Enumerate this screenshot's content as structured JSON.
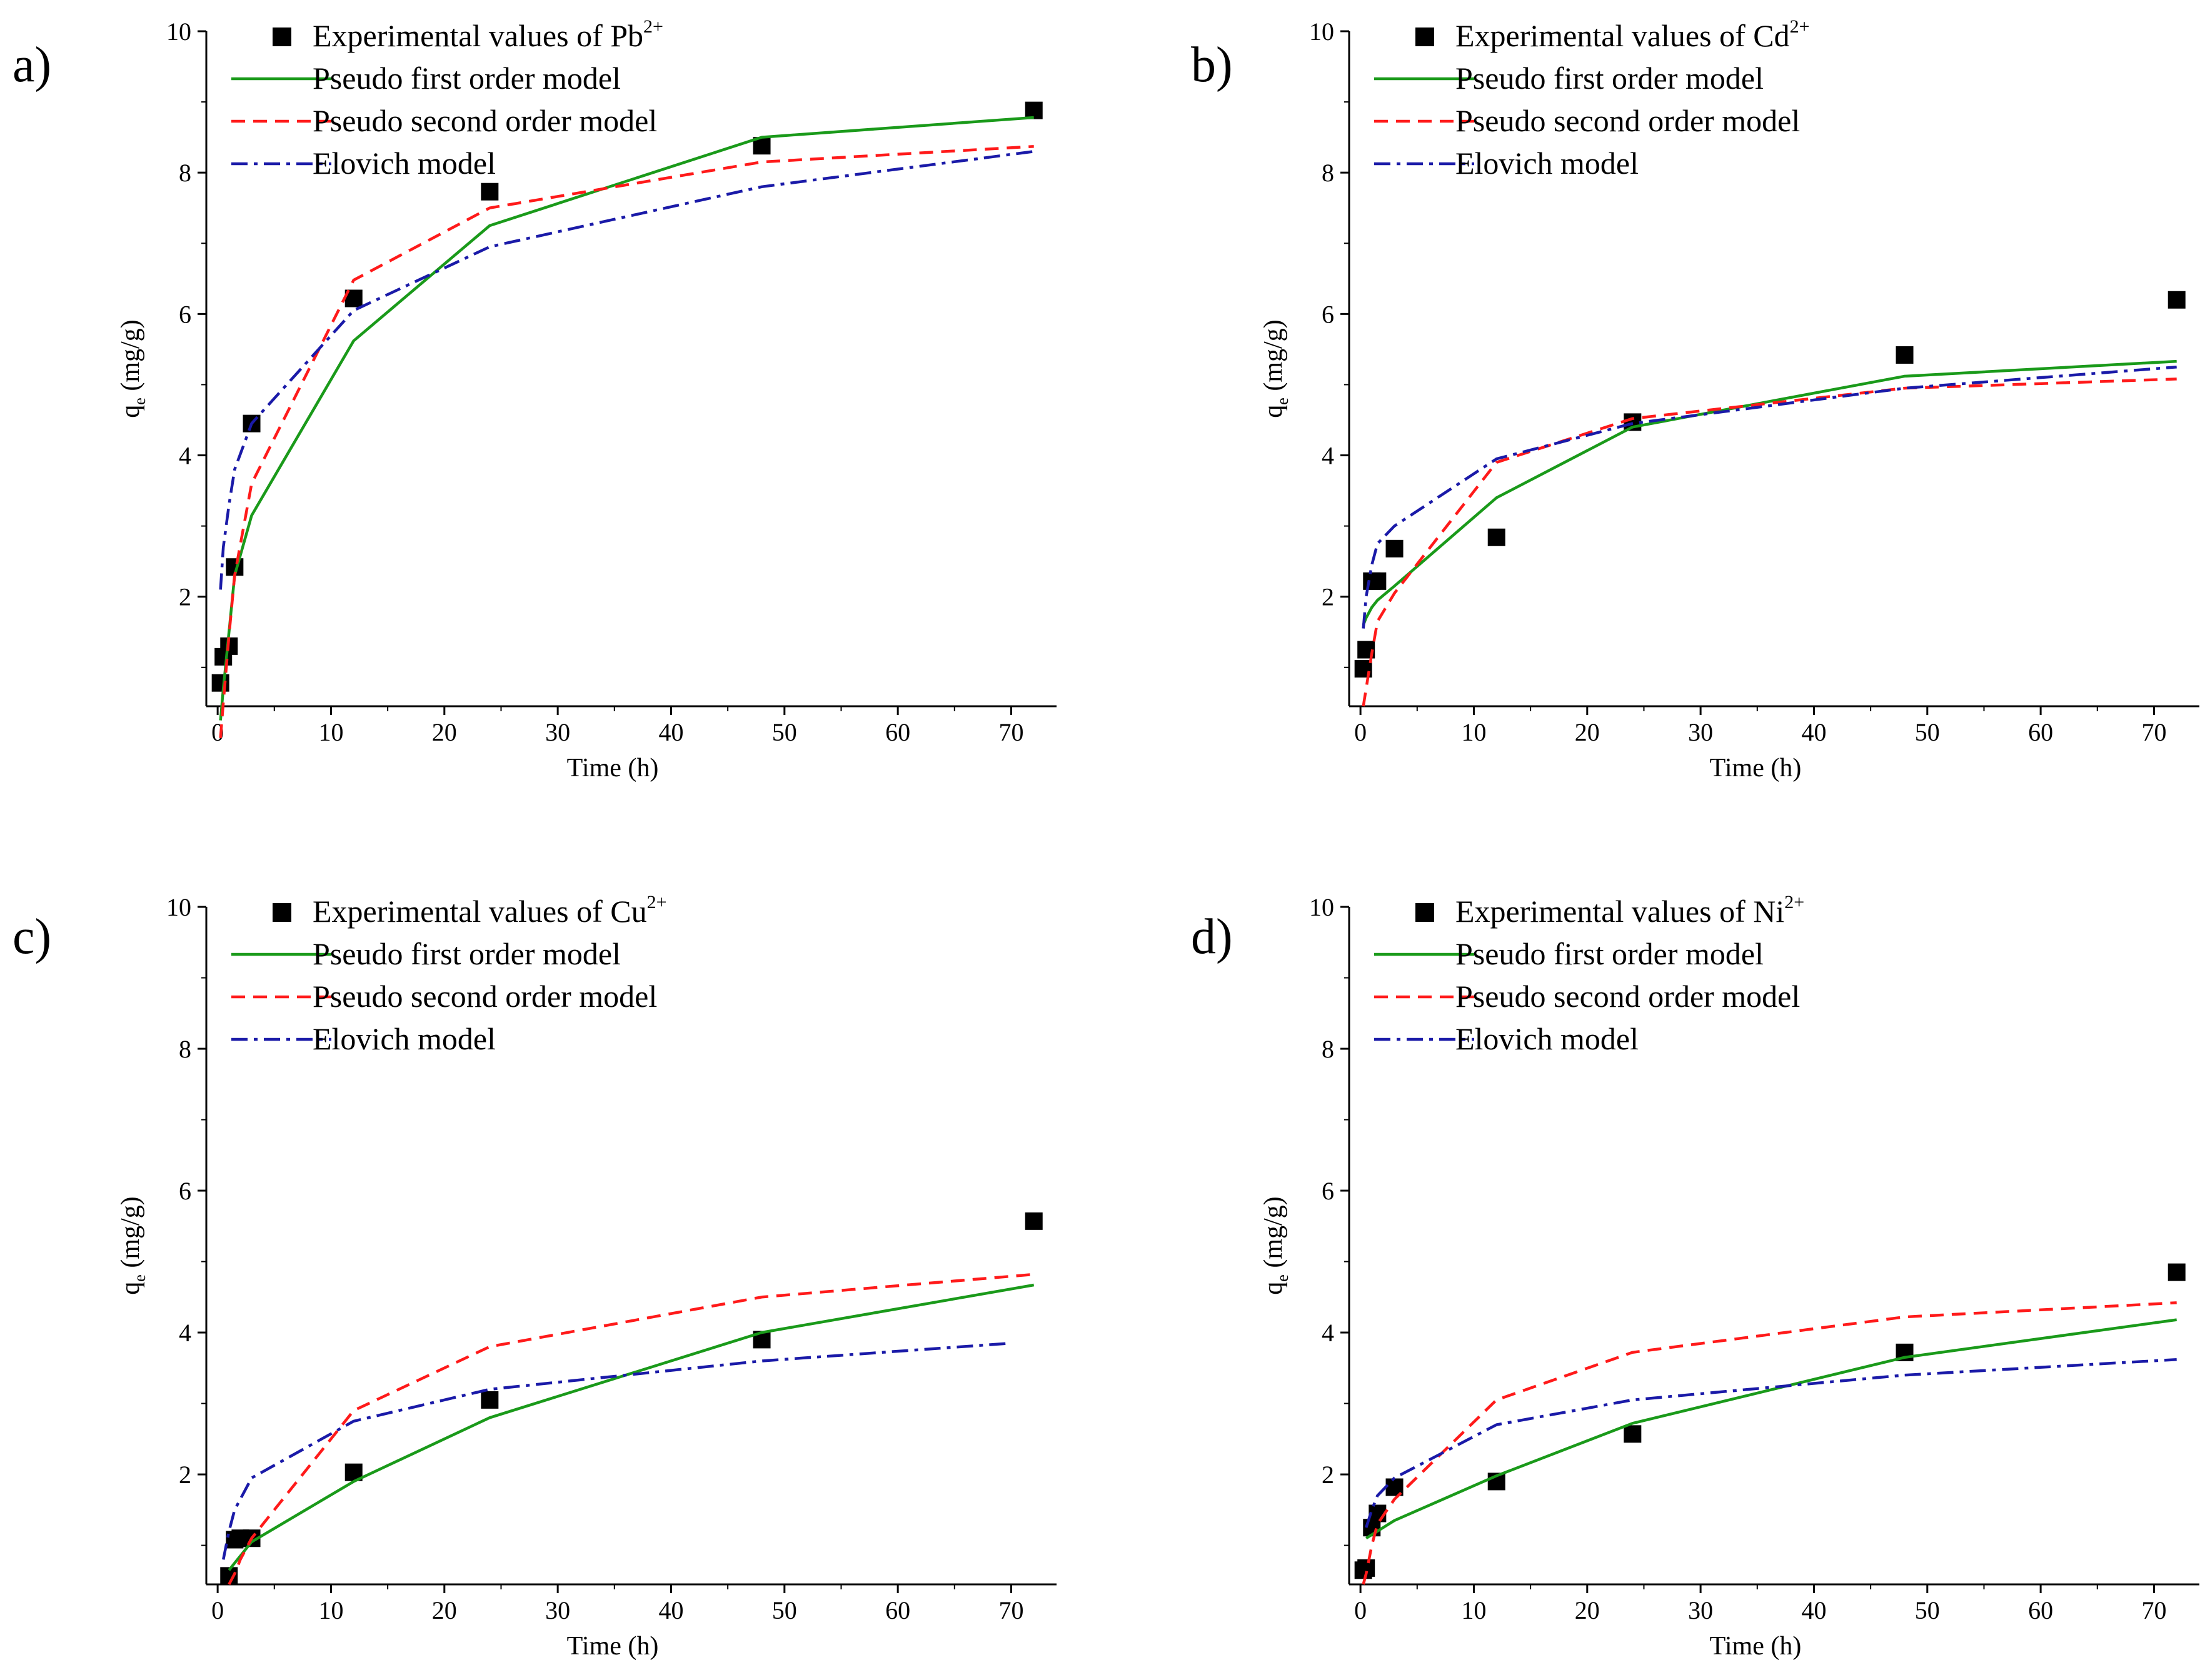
{
  "figure": {
    "colors": {
      "experimental": "#000000",
      "first_order": "#1a9a1a",
      "second_order": "#ff1a1a",
      "elovich": "#1a1aa8"
    },
    "legend_labels": {
      "first_order": "Pseudo first order model",
      "second_order": "Pseudo second order model",
      "elovich": "Elovich model"
    }
  },
  "chart_data": [
    {
      "type": "line",
      "panel_label": "a)",
      "legend_title": "Experimental values of Pb",
      "legend_sup": "2+",
      "xlabel": "Time (h)",
      "ylabel_main": "q",
      "ylabel_sub": "e",
      "ylabel_unit": " (mg/g)",
      "xlim": [
        -1,
        74
      ],
      "ylim": [
        0.45,
        10
      ],
      "xticks": [
        0,
        10,
        20,
        30,
        40,
        50,
        60,
        70
      ],
      "yticks": [
        2,
        4,
        6,
        8,
        10
      ],
      "series": [
        {
          "name": "Experimental values",
          "kind": "scatter",
          "x": [
            0.25,
            0.5,
            1,
            1.5,
            3,
            12,
            24,
            48,
            72
          ],
          "y": [
            0.78,
            1.15,
            1.3,
            2.42,
            4.45,
            6.22,
            7.73,
            8.38,
            8.88
          ]
        },
        {
          "name": "Pseudo first order model",
          "kind": "solid",
          "x": [
            0.25,
            0.5,
            1,
            1.5,
            3,
            12,
            24,
            48,
            72
          ],
          "y": [
            0.25,
            0.7,
            1.5,
            2.3,
            3.15,
            5.62,
            7.25,
            8.5,
            8.78
          ]
        },
        {
          "name": "Pseudo second order model",
          "kind": "dash",
          "x": [
            0.25,
            0.5,
            1,
            1.5,
            3,
            12,
            24,
            48,
            72
          ],
          "y": [
            0.0,
            0.5,
            1.45,
            2.3,
            3.6,
            6.48,
            7.5,
            8.15,
            8.37
          ]
        },
        {
          "name": "Elovich model",
          "kind": "dashdot",
          "x": [
            0.25,
            0.5,
            1,
            1.5,
            3,
            12,
            24,
            48,
            72
          ],
          "y": [
            2.1,
            2.7,
            3.3,
            3.8,
            4.45,
            6.05,
            6.95,
            7.8,
            8.3
          ]
        }
      ]
    },
    {
      "type": "line",
      "panel_label": "b)",
      "legend_title": "Experimental values of Cd",
      "legend_sup": "2+",
      "xlabel": "Time (h)",
      "ylabel_main": "q",
      "ylabel_sub": "e",
      "ylabel_unit": " (mg/g)",
      "xlim": [
        -1,
        74
      ],
      "ylim": [
        0.45,
        10
      ],
      "xticks": [
        0,
        10,
        20,
        30,
        40,
        50,
        60,
        70
      ],
      "yticks": [
        2,
        4,
        6,
        8,
        10
      ],
      "series": [
        {
          "name": "Experimental values",
          "kind": "scatter",
          "x": [
            0.25,
            0.5,
            1,
            1.5,
            3,
            12,
            24,
            48,
            72
          ],
          "y": [
            0.98,
            1.25,
            2.22,
            2.22,
            2.68,
            2.84,
            4.47,
            5.42,
            6.2
          ]
        },
        {
          "name": "Pseudo first order model",
          "kind": "solid",
          "x": [
            0.25,
            0.5,
            1,
            1.5,
            3,
            12,
            24,
            48,
            72
          ],
          "y": [
            1.6,
            1.7,
            1.85,
            1.95,
            2.15,
            3.4,
            4.4,
            5.12,
            5.33
          ]
        },
        {
          "name": "Pseudo second order model",
          "kind": "dash",
          "x": [
            0.25,
            0.5,
            1,
            1.5,
            3,
            12,
            24,
            48,
            72
          ],
          "y": [
            0.45,
            0.7,
            1.2,
            1.65,
            2.05,
            3.9,
            4.52,
            4.95,
            5.08
          ]
        },
        {
          "name": "Elovich model",
          "kind": "dashdot",
          "x": [
            0.25,
            0.5,
            1,
            1.5,
            3,
            12,
            24,
            48,
            72
          ],
          "y": [
            1.55,
            2.0,
            2.45,
            2.75,
            3.0,
            3.95,
            4.45,
            4.95,
            5.25
          ]
        }
      ]
    },
    {
      "type": "line",
      "panel_label": "c)",
      "legend_title": "Experimental values of Cu",
      "legend_sup": "2+",
      "xlabel": "Time (h)",
      "ylabel_main": "q",
      "ylabel_sub": "e",
      "ylabel_unit": " (mg/g)",
      "xlim": [
        -1,
        74
      ],
      "ylim": [
        0.45,
        10
      ],
      "xticks": [
        0,
        10,
        20,
        30,
        40,
        50,
        60,
        70
      ],
      "yticks": [
        2,
        4,
        6,
        8,
        10
      ],
      "series": [
        {
          "name": "Experimental values",
          "kind": "scatter",
          "x": [
            1,
            1.5,
            2,
            3,
            12,
            24,
            48,
            72
          ],
          "y": [
            0.57,
            1.08,
            1.1,
            1.1,
            2.03,
            3.05,
            3.9,
            5.57
          ]
        },
        {
          "name": "Pseudo first order model",
          "kind": "solid",
          "x": [
            1,
            1.5,
            2,
            3,
            12,
            24,
            48,
            72
          ],
          "y": [
            0.65,
            0.75,
            0.85,
            1.05,
            1.9,
            2.8,
            4.0,
            4.67
          ]
        },
        {
          "name": "Pseudo second order model",
          "kind": "dash",
          "x": [
            1,
            1.5,
            2,
            3,
            12,
            24,
            48,
            72
          ],
          "y": [
            0.45,
            0.6,
            0.8,
            1.1,
            2.9,
            3.8,
            4.5,
            4.82
          ]
        },
        {
          "name": "Elovich model",
          "kind": "dashdot",
          "x": [
            0.5,
            1,
            1.5,
            3,
            12,
            24,
            48,
            70
          ],
          "y": [
            0.8,
            1.2,
            1.5,
            1.95,
            2.75,
            3.2,
            3.6,
            3.85
          ]
        }
      ]
    },
    {
      "type": "line",
      "panel_label": "d)",
      "legend_title": "Experimental values of Ni",
      "legend_sup": "2+",
      "xlabel": "Time (h)",
      "ylabel_main": "q",
      "ylabel_sub": "e",
      "ylabel_unit": " (mg/g)",
      "xlim": [
        -1,
        74
      ],
      "ylim": [
        0.45,
        10
      ],
      "xticks": [
        0,
        10,
        20,
        30,
        40,
        50,
        60,
        70
      ],
      "yticks": [
        2,
        4,
        6,
        8,
        10
      ],
      "series": [
        {
          "name": "Experimental values",
          "kind": "scatter",
          "x": [
            0.25,
            0.5,
            1,
            1.5,
            3,
            12,
            24,
            48,
            72
          ],
          "y": [
            0.65,
            0.68,
            1.25,
            1.45,
            1.82,
            1.9,
            2.57,
            3.72,
            4.85
          ]
        },
        {
          "name": "Pseudo first order model",
          "kind": "solid",
          "x": [
            0.5,
            1,
            1.5,
            3,
            12,
            24,
            48,
            72
          ],
          "y": [
            1.1,
            1.15,
            1.2,
            1.35,
            1.98,
            2.72,
            3.65,
            4.18
          ]
        },
        {
          "name": "Pseudo second order model",
          "kind": "dash",
          "x": [
            0.25,
            0.5,
            1,
            1.5,
            3,
            12,
            24,
            48,
            72
          ],
          "y": [
            0.45,
            0.6,
            1.0,
            1.3,
            1.65,
            3.05,
            3.72,
            4.22,
            4.42
          ]
        },
        {
          "name": "Elovich model",
          "kind": "dashdot",
          "x": [
            0.5,
            1,
            1.5,
            3,
            12,
            24,
            48,
            72
          ],
          "y": [
            1.25,
            1.5,
            1.7,
            1.95,
            2.7,
            3.05,
            3.4,
            3.62
          ]
        }
      ]
    }
  ]
}
